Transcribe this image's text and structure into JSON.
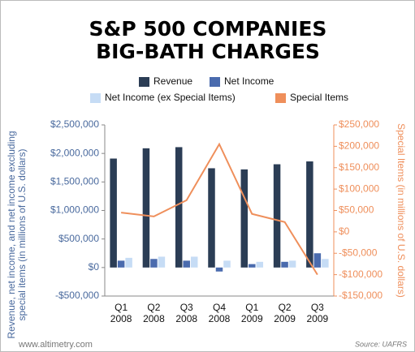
{
  "chart_data": {
    "type": "bar",
    "title": [
      "S&P 500 COMPANIES",
      "BIG-BATH CHARGES"
    ],
    "categories": [
      [
        "Q1",
        "2008"
      ],
      [
        "Q2",
        "2008"
      ],
      [
        "Q3",
        "2008"
      ],
      [
        "Q4",
        "2008"
      ],
      [
        "Q1",
        "2009"
      ],
      [
        "Q2",
        "2009"
      ],
      [
        "Q3",
        "2009"
      ]
    ],
    "series": [
      {
        "name": "Revenue",
        "color": "#2b3d55",
        "type": "bar",
        "values": [
          1910000,
          2090000,
          2110000,
          1740000,
          1720000,
          1810000,
          1860000
        ]
      },
      {
        "name": "Net Income",
        "color": "#4a6bae",
        "type": "bar",
        "values": [
          120000,
          150000,
          120000,
          -70000,
          60000,
          100000,
          250000
        ]
      },
      {
        "name": "Net Income (ex Special Items)",
        "color": "#c6dcf5",
        "type": "bar",
        "values": [
          170000,
          190000,
          190000,
          120000,
          100000,
          120000,
          150000
        ]
      },
      {
        "name": "Special Items",
        "color": "#ef8f5b",
        "type": "line",
        "axis": "y2",
        "values": [
          45000,
          36000,
          74000,
          205000,
          42000,
          23000,
          -100000
        ]
      }
    ],
    "ylim": [
      -500000,
      2500000
    ],
    "yticks": [
      {
        "value": -500000,
        "label": "-$500,000"
      },
      {
        "value": 0,
        "label": "$0"
      },
      {
        "value": 500000,
        "label": "$500,000"
      },
      {
        "value": 1000000,
        "label": "$1,000,000"
      },
      {
        "value": 1500000,
        "label": "$1,500,000"
      },
      {
        "value": 2000000,
        "label": "$2,000,000"
      },
      {
        "value": 2500000,
        "label": "$2,500,000"
      }
    ],
    "y2lim": [
      -150000,
      250000
    ],
    "y2ticks": [
      {
        "value": -150000,
        "label": "-$150,000"
      },
      {
        "value": -100000,
        "label": "-$100,000"
      },
      {
        "value": -50000,
        "label": "-$50,000"
      },
      {
        "value": 0,
        "label": "$0"
      },
      {
        "value": 50000,
        "label": "$50,000"
      },
      {
        "value": 100000,
        "label": "$100,000"
      },
      {
        "value": 150000,
        "label": "$150,000"
      },
      {
        "value": 200000,
        "label": "$200,000"
      },
      {
        "value": 250000,
        "label": "$250,000"
      }
    ],
    "y_label": [
      "Revenue, net income, and net income excluding",
      "special items (in millions of U.S. dollars)"
    ],
    "y2_label": "Special Items (in millions of U.S. dollars)",
    "footer_left": "www.altimetry.com",
    "source": "Source: UAFRS"
  }
}
